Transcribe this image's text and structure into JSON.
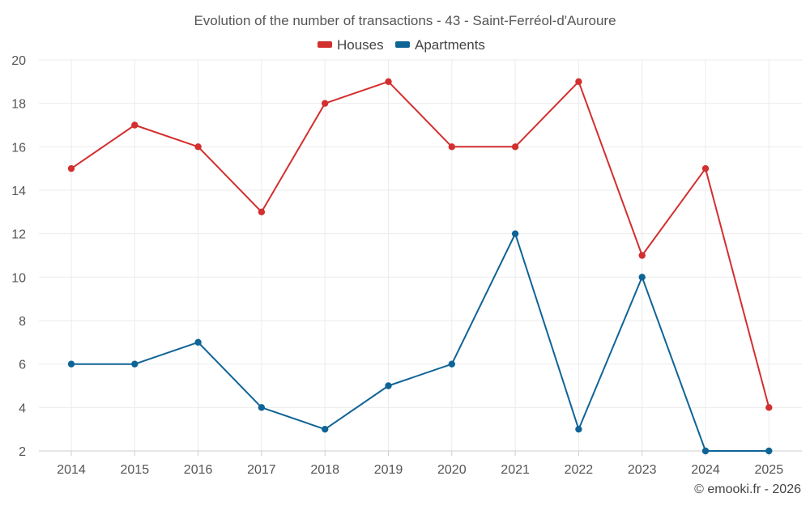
{
  "chart_data": {
    "type": "line",
    "title": "Evolution of the number of transactions - 43 - Saint-Ferréol-d'Auroure",
    "categories": [
      "2014",
      "2015",
      "2016",
      "2017",
      "2018",
      "2019",
      "2020",
      "2021",
      "2022",
      "2023",
      "2024",
      "2025"
    ],
    "series": [
      {
        "name": "Houses",
        "color": "#d32f2f",
        "values": [
          15,
          17,
          16,
          13,
          18,
          19,
          16,
          16,
          19,
          11,
          15,
          4
        ]
      },
      {
        "name": "Apartments",
        "color": "#0f6496",
        "values": [
          6,
          6,
          7,
          4,
          3,
          5,
          6,
          12,
          3,
          10,
          2,
          2
        ]
      }
    ],
    "ylim": [
      2,
      20
    ],
    "yticks": [
      2,
      4,
      6,
      8,
      10,
      12,
      14,
      16,
      18,
      20
    ],
    "xlabel": "",
    "ylabel": "",
    "grid": true,
    "legend": "top-center"
  },
  "credit": "© emooki.fr - 2026"
}
